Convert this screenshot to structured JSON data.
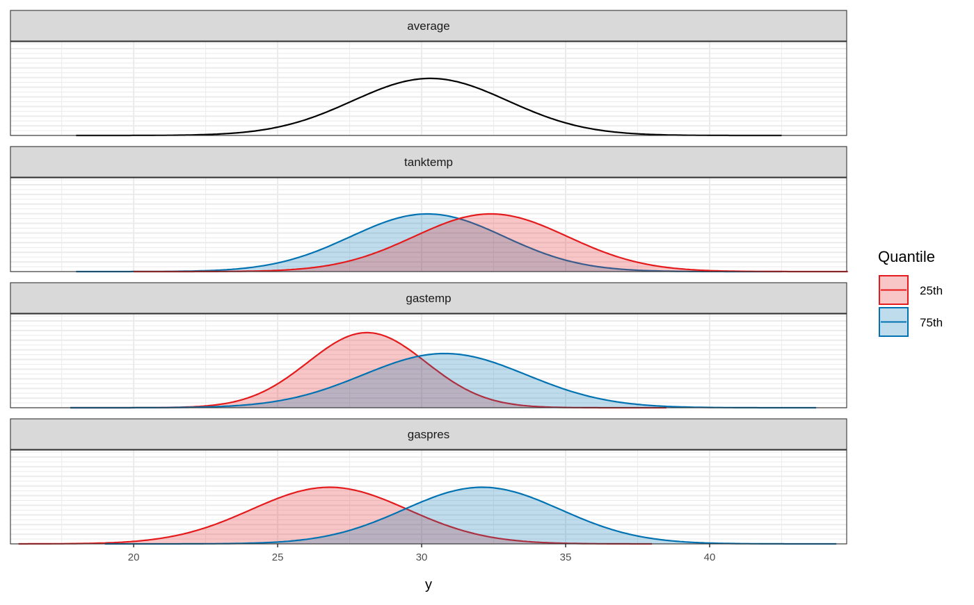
{
  "chart_data": {
    "type": "area",
    "title": "",
    "xlabel": "y",
    "ylabel": "",
    "xlim": [
      15.72,
      44.76
    ],
    "ylim": [
      0,
      0.243
    ],
    "x_ticks": [
      20,
      25,
      30,
      35,
      40
    ],
    "x_tick_labels": [
      "20",
      "25",
      "30",
      "35",
      "40"
    ],
    "grid": true,
    "legend": {
      "title": "Quantile",
      "placement": "right",
      "entries": [
        {
          "label": "25th",
          "color": "#E41A1C"
        },
        {
          "label": "75th",
          "color": "#0072B2"
        }
      ]
    },
    "colors": {
      "average": "#000000",
      "25th": "#E41A1C",
      "75th": "#0072B2"
    },
    "panels": [
      {
        "label": "average",
        "series": [
          {
            "name": "average",
            "distribution": "normal",
            "mean": 30.3,
            "sd": 2.7,
            "range": [
              18.0,
              42.5
            ],
            "filled": false
          }
        ]
      },
      {
        "label": "tanktemp",
        "series": [
          {
            "name": "75th",
            "distribution": "normal",
            "mean": 30.2,
            "sd": 2.67,
            "range": [
              18.0,
              42.5
            ],
            "filled": true
          },
          {
            "name": "25th",
            "distribution": "normal",
            "mean": 32.4,
            "sd": 2.67,
            "range": [
              20.0,
              44.8
            ],
            "filled": true
          }
        ]
      },
      {
        "label": "gastemp",
        "series": [
          {
            "name": "25th",
            "distribution": "normal",
            "mean": 28.1,
            "sd": 2.05,
            "range": [
              17.8,
              38.5
            ],
            "filled": true
          },
          {
            "name": "75th",
            "distribution": "normal",
            "mean": 30.8,
            "sd": 2.84,
            "range": [
              17.8,
              43.7
            ],
            "filled": true
          }
        ]
      },
      {
        "label": "gaspres",
        "series": [
          {
            "name": "25th",
            "distribution": "normal",
            "mean": 26.8,
            "sd": 2.72,
            "range": [
              16.0,
              38.0
            ],
            "filled": true
          },
          {
            "name": "75th",
            "distribution": "normal",
            "mean": 32.1,
            "sd": 2.72,
            "range": [
              19.0,
              44.4
            ],
            "filled": true
          }
        ]
      }
    ]
  }
}
